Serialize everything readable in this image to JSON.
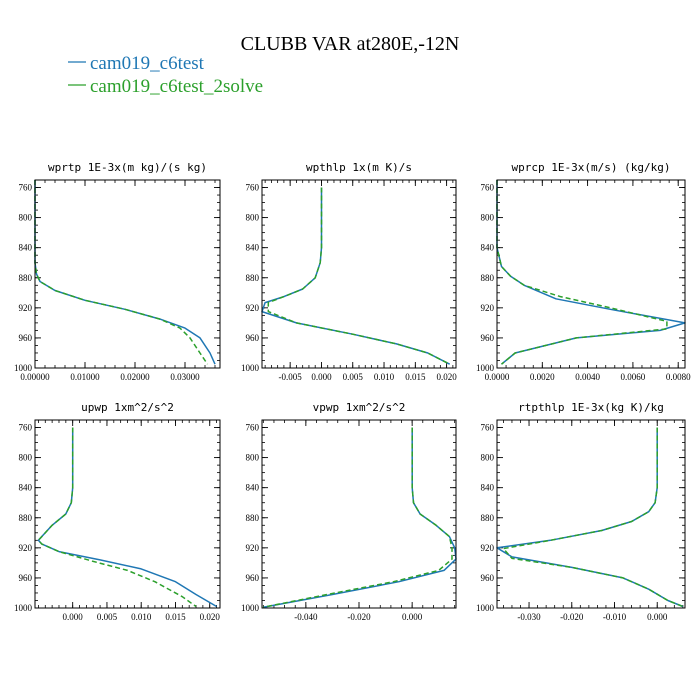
{
  "figure": {
    "title": "CLUBB VAR at280E,-12N",
    "legend": [
      {
        "label": "cam019_c6test",
        "color": "#1f77b4"
      },
      {
        "label": "cam019_c6test_2solve",
        "color": "#2ca02c"
      }
    ]
  },
  "chart_data": [
    {
      "type": "line",
      "title": "wprtp  1E-3x(m kg)/(s kg)",
      "xlim": [
        0,
        0.037
      ],
      "ylim": [
        1000,
        750
      ],
      "xticks": [
        0,
        0.01,
        0.02,
        0.03
      ],
      "xtick_labels": [
        "0.00000",
        "0.01000",
        "0.02000",
        "0.03000"
      ],
      "yticks": [
        760,
        800,
        840,
        880,
        920,
        960,
        1000
      ],
      "ytick_labels": [
        "760",
        "800",
        "840",
        "880",
        "920",
        "960",
        "1000"
      ],
      "series": [
        {
          "name": "cam019_c6test",
          "color": "#1f77b4",
          "dash": "",
          "points": [
            [
              0,
              750
            ],
            [
              0,
              800
            ],
            [
              0,
              840
            ],
            [
              0,
              860
            ],
            [
              0.0003,
              875
            ],
            [
              0.001,
              885
            ],
            [
              0.004,
              897
            ],
            [
              0.01,
              910
            ],
            [
              0.018,
              922
            ],
            [
              0.025,
              935
            ],
            [
              0.03,
              947
            ],
            [
              0.033,
              960
            ],
            [
              0.035,
              980
            ],
            [
              0.036,
              995
            ]
          ]
        },
        {
          "name": "cam019_c6test_2solve",
          "color": "#2ca02c",
          "dash": "5,3",
          "points": [
            [
              0,
              750
            ],
            [
              0,
              800
            ],
            [
              0,
              840
            ],
            [
              0,
              860
            ],
            [
              0.0003,
              875
            ],
            [
              0.001,
              885
            ],
            [
              0.004,
              897
            ],
            [
              0.01,
              910
            ],
            [
              0.018,
              922
            ],
            [
              0.025,
              935
            ],
            [
              0.029,
              947
            ],
            [
              0.031,
              960
            ],
            [
              0.033,
              980
            ],
            [
              0.0345,
              995
            ]
          ]
        }
      ]
    },
    {
      "type": "line",
      "title": "wpthlp  1x(m K)/s",
      "xlim": [
        -0.0095,
        0.0215
      ],
      "ylim": [
        1000,
        750
      ],
      "xticks": [
        -0.005,
        0,
        0.005,
        0.01,
        0.015,
        0.02
      ],
      "xtick_labels": [
        "-0.005",
        "0.000",
        "0.005",
        "0.010",
        "0.015",
        "0.020"
      ],
      "yticks": [
        760,
        800,
        840,
        880,
        920,
        960,
        1000
      ],
      "ytick_labels": [
        "760",
        "800",
        "840",
        "880",
        "920",
        "960",
        "1000"
      ],
      "series": [
        {
          "name": "cam019_c6test",
          "color": "#1f77b4",
          "dash": "",
          "points": [
            [
              0,
              760
            ],
            [
              0,
              800
            ],
            [
              0,
              840
            ],
            [
              -0.0002,
              860
            ],
            [
              -0.001,
              880
            ],
            [
              -0.003,
              895
            ],
            [
              -0.006,
              905
            ],
            [
              -0.009,
              913
            ],
            [
              -0.0095,
              925
            ],
            [
              -0.004,
              940
            ],
            [
              0.005,
              955
            ],
            [
              0.012,
              968
            ],
            [
              0.017,
              980
            ],
            [
              0.0205,
              995
            ]
          ]
        },
        {
          "name": "cam019_c6test_2solve",
          "color": "#2ca02c",
          "dash": "5,3",
          "points": [
            [
              0,
              760
            ],
            [
              0,
              800
            ],
            [
              0,
              840
            ],
            [
              -0.0002,
              860
            ],
            [
              -0.001,
              880
            ],
            [
              -0.003,
              895
            ],
            [
              -0.006,
              905
            ],
            [
              -0.0085,
              913
            ],
            [
              -0.0085,
              925
            ],
            [
              -0.004,
              940
            ],
            [
              0.005,
              955
            ],
            [
              0.012,
              968
            ],
            [
              0.017,
              980
            ],
            [
              0.0205,
              995
            ]
          ]
        }
      ]
    },
    {
      "type": "line",
      "title": "wprcp  1E-3x(m/s) (kg/kg)",
      "xlim": [
        0,
        0.0083
      ],
      "ylim": [
        1000,
        750
      ],
      "xticks": [
        0,
        0.002,
        0.004,
        0.006,
        0.008
      ],
      "xtick_labels": [
        "0.0000",
        "0.0020",
        "0.0040",
        "0.0060",
        "0.0080"
      ],
      "yticks": [
        760,
        800,
        840,
        880,
        920,
        960,
        1000
      ],
      "ytick_labels": [
        "760",
        "800",
        "840",
        "880",
        "920",
        "960",
        "1000"
      ],
      "series": [
        {
          "name": "cam019_c6test",
          "color": "#1f77b4",
          "dash": "",
          "points": [
            [
              0,
              750
            ],
            [
              0,
              820
            ],
            [
              0,
              840
            ],
            [
              0.0002,
              865
            ],
            [
              0.0006,
              878
            ],
            [
              0.0012,
              890
            ],
            [
              0.0026,
              908
            ],
            [
              0.005,
              922
            ],
            [
              0.0083,
              940
            ],
            [
              0.0072,
              950
            ],
            [
              0.0035,
              960
            ],
            [
              0.0008,
              980
            ],
            [
              0.0002,
              995
            ]
          ]
        },
        {
          "name": "cam019_c6test_2solve",
          "color": "#2ca02c",
          "dash": "5,3",
          "points": [
            [
              0,
              750
            ],
            [
              0,
              820
            ],
            [
              0,
              840
            ],
            [
              0.0002,
              865
            ],
            [
              0.0006,
              878
            ],
            [
              0.0012,
              890
            ],
            [
              0.0028,
              905
            ],
            [
              0.005,
              920
            ],
            [
              0.0075,
              938
            ],
            [
              0.0075,
              948
            ],
            [
              0.0035,
              960
            ],
            [
              0.0008,
              980
            ],
            [
              0.0002,
              995
            ]
          ]
        }
      ]
    },
    {
      "type": "line",
      "title": "upwp  1xm^2/s^2",
      "xlim": [
        -0.0055,
        0.0215
      ],
      "ylim": [
        1000,
        750
      ],
      "xticks": [
        0,
        0.005,
        0.01,
        0.015,
        0.02
      ],
      "xtick_labels": [
        "0.000",
        "0.005",
        "0.010",
        "0.015",
        "0.020"
      ],
      "yticks": [
        760,
        800,
        840,
        880,
        920,
        960,
        1000
      ],
      "ytick_labels": [
        "760",
        "800",
        "840",
        "880",
        "920",
        "960",
        "1000"
      ],
      "series": [
        {
          "name": "cam019_c6test",
          "color": "#1f77b4",
          "dash": "",
          "points": [
            [
              0,
              760
            ],
            [
              0,
              800
            ],
            [
              0,
              840
            ],
            [
              -0.0002,
              860
            ],
            [
              -0.001,
              875
            ],
            [
              -0.003,
              890
            ],
            [
              -0.005,
              910
            ],
            [
              -0.0045,
              915
            ],
            [
              -0.002,
              925
            ],
            [
              0.004,
              936
            ],
            [
              0.01,
              948
            ],
            [
              0.015,
              965
            ],
            [
              0.018,
              982
            ],
            [
              0.021,
              998
            ]
          ]
        },
        {
          "name": "cam019_c6test_2solve",
          "color": "#2ca02c",
          "dash": "5,3",
          "points": [
            [
              0,
              760
            ],
            [
              0,
              800
            ],
            [
              0,
              840
            ],
            [
              -0.0002,
              860
            ],
            [
              -0.001,
              875
            ],
            [
              -0.003,
              890
            ],
            [
              -0.005,
              910
            ],
            [
              -0.0045,
              915
            ],
            [
              -0.002,
              925
            ],
            [
              0.003,
              938
            ],
            [
              0.008,
              950
            ],
            [
              0.012,
              965
            ],
            [
              0.016,
              985
            ],
            [
              0.018,
              998
            ]
          ]
        }
      ]
    },
    {
      "type": "line",
      "title": "vpwp  1xm^2/s^2",
      "xlim": [
        -0.0565,
        0.0165
      ],
      "ylim": [
        1000,
        750
      ],
      "xticks": [
        -0.04,
        -0.02,
        0
      ],
      "xtick_labels": [
        "-0.040",
        "-0.020",
        "0.000"
      ],
      "yticks": [
        760,
        800,
        840,
        880,
        920,
        960,
        1000
      ],
      "ytick_labels": [
        "760",
        "800",
        "840",
        "880",
        "920",
        "960",
        "1000"
      ],
      "series": [
        {
          "name": "cam019_c6test",
          "color": "#1f77b4",
          "dash": "",
          "points": [
            [
              0,
              760
            ],
            [
              0,
              800
            ],
            [
              0,
              840
            ],
            [
              0.0005,
              860
            ],
            [
              0.003,
              875
            ],
            [
              0.009,
              890
            ],
            [
              0.014,
              905
            ],
            [
              0.016,
              920
            ],
            [
              0.0165,
              935
            ],
            [
              0.012,
              950
            ],
            [
              -0.005,
              965
            ],
            [
              -0.03,
              982
            ],
            [
              -0.056,
              999
            ]
          ]
        },
        {
          "name": "cam019_c6test_2solve",
          "color": "#2ca02c",
          "dash": "5,3",
          "points": [
            [
              0,
              760
            ],
            [
              0,
              800
            ],
            [
              0,
              840
            ],
            [
              0.0005,
              860
            ],
            [
              0.003,
              875
            ],
            [
              0.009,
              890
            ],
            [
              0.014,
              905
            ],
            [
              0.015,
              920
            ],
            [
              0.015,
              935
            ],
            [
              0.01,
              950
            ],
            [
              -0.007,
              965
            ],
            [
              -0.032,
              982
            ],
            [
              -0.056,
              999
            ]
          ]
        }
      ]
    },
    {
      "type": "line",
      "title": "rtpthlp  1E-3x(kg K)/kg",
      "xlim": [
        -0.0375,
        0.0065
      ],
      "ylim": [
        1000,
        750
      ],
      "xticks": [
        -0.03,
        -0.02,
        -0.01,
        0
      ],
      "xtick_labels": [
        "-0.030",
        "-0.020",
        "-0.010",
        "0.000"
      ],
      "yticks": [
        760,
        800,
        840,
        880,
        920,
        960,
        1000
      ],
      "ytick_labels": [
        "760",
        "800",
        "840",
        "880",
        "920",
        "960",
        "1000"
      ],
      "series": [
        {
          "name": "cam019_c6test",
          "color": "#1f77b4",
          "dash": "",
          "points": [
            [
              0,
              760
            ],
            [
              0,
              800
            ],
            [
              0,
              840
            ],
            [
              -0.0005,
              860
            ],
            [
              -0.002,
              872
            ],
            [
              -0.006,
              885
            ],
            [
              -0.013,
              897
            ],
            [
              -0.025,
              910
            ],
            [
              -0.0375,
              920
            ],
            [
              -0.034,
              932
            ],
            [
              -0.02,
              946
            ],
            [
              -0.008,
              960
            ],
            [
              -0.002,
              975
            ],
            [
              0.0025,
              990
            ],
            [
              0.006,
              998
            ]
          ]
        },
        {
          "name": "cam019_c6test_2solve",
          "color": "#2ca02c",
          "dash": "5,3",
          "points": [
            [
              0,
              760
            ],
            [
              0,
              800
            ],
            [
              0,
              840
            ],
            [
              -0.0005,
              860
            ],
            [
              -0.002,
              872
            ],
            [
              -0.006,
              885
            ],
            [
              -0.013,
              897
            ],
            [
              -0.025,
              910
            ],
            [
              -0.036,
              921
            ],
            [
              -0.034,
              934
            ],
            [
              -0.02,
              946
            ],
            [
              -0.008,
              960
            ],
            [
              -0.002,
              975
            ],
            [
              0.0025,
              990
            ],
            [
              0.006,
              998
            ]
          ]
        }
      ]
    }
  ]
}
